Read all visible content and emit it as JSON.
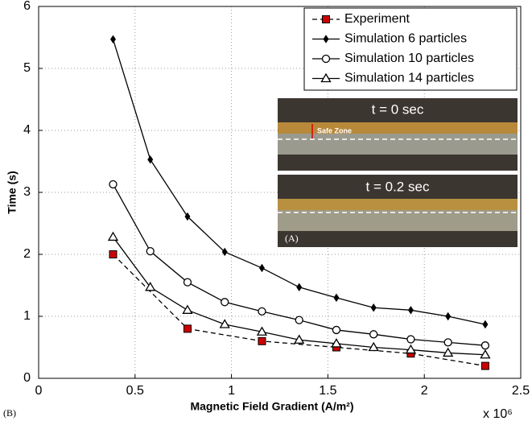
{
  "chart_data": {
    "type": "line",
    "x_label": "Magnetic Field Gradient (A/m²)",
    "y_label": "Time (s)",
    "x_exponent": "x 10⁶",
    "panel_label": "(B)",
    "xlim": [
      0,
      2.5
    ],
    "xticks": [
      0,
      0.5,
      1,
      1.5,
      2,
      2.5
    ],
    "ylim": [
      0,
      6
    ],
    "yticks": [
      0,
      1,
      2,
      3,
      4,
      5,
      6
    ],
    "grid": true,
    "legend": "top-right",
    "series": [
      {
        "name": "Experiment",
        "color": "#cc0000",
        "marker": "square",
        "dashed": true,
        "x": [
          0.386,
          0.772,
          1.158,
          1.544,
          1.93,
          2.316
        ],
        "values": [
          2.0,
          0.8,
          0.6,
          0.5,
          0.4,
          0.2
        ]
      },
      {
        "name": "Simulation 6 particles",
        "color": "#000000",
        "marker": "plus",
        "dashed": false,
        "x": [
          0.386,
          0.579,
          0.772,
          0.965,
          1.158,
          1.351,
          1.544,
          1.737,
          1.93,
          2.123,
          2.316
        ],
        "values": [
          5.47,
          3.53,
          2.61,
          2.04,
          1.78,
          1.47,
          1.3,
          1.14,
          1.1,
          1.0,
          0.87
        ]
      },
      {
        "name": "Simulation 10 particles",
        "color": "#000000",
        "marker": "circle",
        "dashed": false,
        "x": [
          0.386,
          0.579,
          0.772,
          0.965,
          1.158,
          1.351,
          1.544,
          1.737,
          1.93,
          2.123,
          2.316
        ],
        "values": [
          3.13,
          2.05,
          1.55,
          1.23,
          1.08,
          0.94,
          0.78,
          0.71,
          0.63,
          0.58,
          0.53
        ]
      },
      {
        "name": "Simulation 14 particles",
        "color": "#000000",
        "marker": "triangle",
        "dashed": false,
        "x": [
          0.386,
          0.579,
          0.772,
          0.965,
          1.158,
          1.351,
          1.544,
          1.737,
          1.93,
          2.123,
          2.316
        ],
        "values": [
          2.28,
          1.47,
          1.1,
          0.87,
          0.75,
          0.62,
          0.56,
          0.5,
          0.46,
          0.41,
          0.38
        ]
      }
    ],
    "inset": {
      "top_caption": "t = 0 sec",
      "zone_label": "Safe Zone",
      "bottom_caption": "t = 0.2 sec",
      "panel_label": "(A)"
    }
  }
}
